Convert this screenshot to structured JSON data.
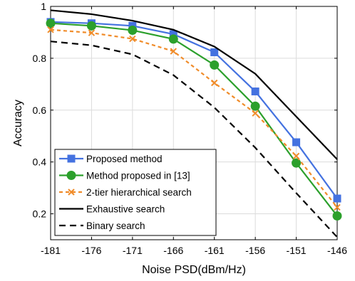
{
  "chart_data": {
    "type": "line",
    "xlabel": "Noise PSD(dBm/Hz)",
    "ylabel": "Accuracy",
    "x": [
      -181,
      -176,
      -171,
      -166,
      -161,
      -156,
      -151,
      -146
    ],
    "xlim": [
      -181,
      -146
    ],
    "ylim": [
      0.1,
      1.0
    ],
    "xticks": [
      "-181",
      "-176",
      "-171",
      "-166",
      "-161",
      "-156",
      "-151",
      "-146"
    ],
    "yticks": [
      {
        "value": 0.2,
        "label": "0.2"
      },
      {
        "value": 0.4,
        "label": "0.4"
      },
      {
        "value": 0.6,
        "label": "0.6"
      },
      {
        "value": 0.8,
        "label": "0.8"
      },
      {
        "value": 1.0,
        "label": "1"
      }
    ],
    "grid": true,
    "legend_position": "bottom-left",
    "series": [
      {
        "name": "Proposed method",
        "color": "#4472e0",
        "style": "solid",
        "marker": "square",
        "values": [
          0.94,
          0.935,
          0.925,
          0.893,
          0.823,
          0.672,
          0.476,
          0.259
        ]
      },
      {
        "name": "Method proposed in [13]",
        "color": "#2ca02c",
        "style": "solid",
        "marker": "circle",
        "values": [
          0.935,
          0.925,
          0.908,
          0.874,
          0.774,
          0.615,
          0.396,
          0.192
        ]
      },
      {
        "name": "2-tier hierarchical search",
        "color": "#f08c2a",
        "style": "dashed",
        "marker": "x",
        "values": [
          0.91,
          0.898,
          0.875,
          0.827,
          0.705,
          0.588,
          0.423,
          0.225
        ]
      },
      {
        "name": "Exhaustive search",
        "color": "#000000",
        "style": "solid",
        "marker": "none",
        "values": [
          0.985,
          0.97,
          0.945,
          0.91,
          0.845,
          0.74,
          0.575,
          0.41
        ]
      },
      {
        "name": "Binary search",
        "color": "#000000",
        "style": "dashed",
        "marker": "none",
        "values": [
          0.865,
          0.85,
          0.815,
          0.735,
          0.61,
          0.455,
          0.28,
          0.11
        ]
      }
    ]
  }
}
